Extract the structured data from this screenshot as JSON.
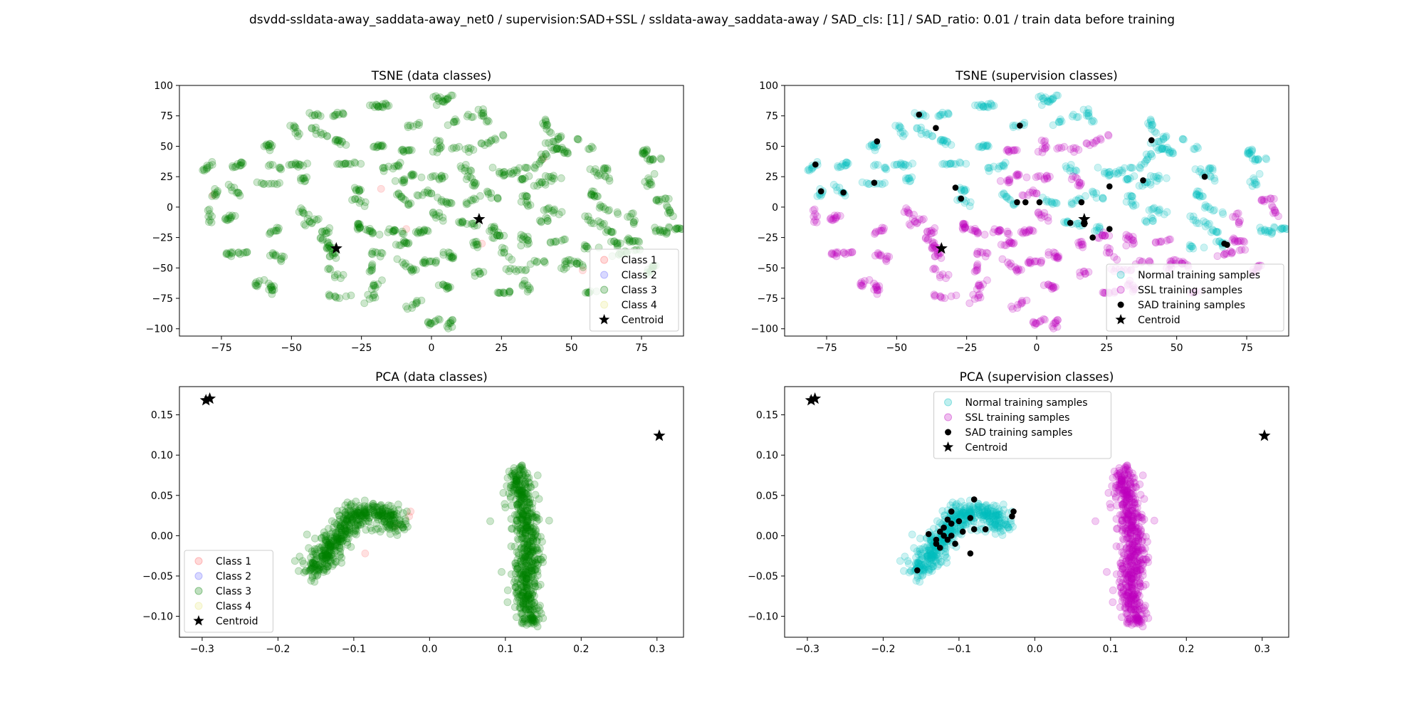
{
  "suptitle": "dsvdd-ssldata-away_saddata-away_net0 / supervision:SAD+SSL / ssldata-away_saddata-away / SAD_cls: [1] / SAD_ratio: 0.01 / train data before training",
  "colors": {
    "class1": "#ff6666",
    "class2": "#6666ff",
    "class3": "#008000",
    "class4": "#e6e680",
    "normal": "#00bfbf",
    "ssl": "#bf00bf",
    "sad": "#000000",
    "centroid": "#000000"
  },
  "chart_data": [
    {
      "type": "scatter",
      "title": "TSNE (data classes)",
      "xlim": [
        -90,
        90
      ],
      "ylim": [
        -106,
        100
      ],
      "xticks": [
        -75,
        -50,
        -25,
        0,
        25,
        50,
        75
      ],
      "yticks": [
        100,
        75,
        50,
        25,
        0,
        -25,
        -50,
        -75,
        -100
      ],
      "legend_position": "lower-right",
      "series": [
        {
          "name": "Class 1",
          "color": "class1",
          "points": [
            [
              -78,
              10
            ],
            [
              -18,
              15
            ],
            [
              -9,
              -18
            ],
            [
              18,
              -30
            ],
            [
              40,
              40
            ],
            [
              54,
              -52
            ]
          ]
        },
        {
          "name": "Class 2",
          "color": "class2",
          "points": []
        },
        {
          "name": "Class 3",
          "color": "class3",
          "points": "tsne_clusters"
        },
        {
          "name": "Class 4",
          "color": "class4",
          "points": []
        }
      ],
      "centroids": [
        [
          -34,
          -34
        ],
        [
          17,
          -10
        ]
      ]
    },
    {
      "type": "scatter",
      "title": "TSNE (supervision classes)",
      "xlim": [
        -90,
        90
      ],
      "ylim": [
        -106,
        100
      ],
      "xticks": [
        -75,
        -50,
        -25,
        0,
        25,
        50,
        75
      ],
      "yticks": [
        100,
        75,
        50,
        25,
        0,
        -25,
        -50,
        -75,
        -100
      ],
      "legend_position": "lower-right",
      "series": [
        {
          "name": "Normal training samples",
          "color": "normal",
          "points": "tsne_clusters_normal"
        },
        {
          "name": "SSL training samples",
          "color": "ssl",
          "points": "tsne_clusters_ssl"
        },
        {
          "name": "SAD training samples",
          "color": "sad",
          "points": [
            [
              -79,
              35
            ],
            [
              -77,
              13
            ],
            [
              -69,
              12
            ],
            [
              -57,
              54
            ],
            [
              -58,
              20
            ],
            [
              -42,
              76
            ],
            [
              -36,
              65
            ],
            [
              -29,
              16
            ],
            [
              -27,
              7
            ],
            [
              -6,
              67
            ],
            [
              -7,
              4
            ],
            [
              -4,
              4
            ],
            [
              1,
              4
            ],
            [
              16,
              4
            ],
            [
              12,
              -13
            ],
            [
              17,
              -14
            ],
            [
              20,
              -25
            ],
            [
              26,
              -18
            ],
            [
              26,
              17
            ],
            [
              38,
              22
            ],
            [
              41,
              55
            ],
            [
              60,
              25
            ],
            [
              67,
              -30
            ],
            [
              68,
              -31
            ]
          ]
        }
      ],
      "centroids": [
        [
          -34,
          -34
        ],
        [
          17,
          -10
        ]
      ]
    },
    {
      "type": "scatter",
      "title": "PCA (data classes)",
      "xlim": [
        -0.33,
        0.335
      ],
      "ylim": [
        -0.126,
        0.185
      ],
      "xticks": [
        -0.3,
        -0.2,
        -0.1,
        0.0,
        0.1,
        0.2,
        0.3
      ],
      "xticklabels": [
        "−0.3",
        "−0.2",
        "−0.1",
        "0.0",
        "0.1",
        "0.2",
        "0.3"
      ],
      "yticks": [
        0.15,
        0.1,
        0.05,
        0.0,
        -0.05,
        -0.1
      ],
      "yticklabels": [
        "0.15",
        "0.10",
        "0.05",
        "0.00",
        "−0.05",
        "−0.10"
      ],
      "legend_position": "lower-left",
      "series": [
        {
          "name": "Class 1",
          "color": "class1",
          "points": [
            [
              -0.025,
              0.03
            ],
            [
              -0.027,
              0.024
            ],
            [
              -0.085,
              -0.022
            ],
            [
              -0.045,
              0.012
            ]
          ]
        },
        {
          "name": "Class 2",
          "color": "class2",
          "points": []
        },
        {
          "name": "Class 3",
          "color": "class3",
          "points": "pca_clusters"
        },
        {
          "name": "Class 4",
          "color": "class4",
          "points": []
        }
      ],
      "centroids": [
        [
          -0.295,
          0.168
        ],
        [
          -0.29,
          0.17
        ],
        [
          0.303,
          0.124
        ]
      ]
    },
    {
      "type": "scatter",
      "title": "PCA (supervision classes)",
      "xlim": [
        -0.33,
        0.335
      ],
      "ylim": [
        -0.126,
        0.185
      ],
      "xticks": [
        -0.3,
        -0.2,
        -0.1,
        0.0,
        0.1,
        0.2,
        0.3
      ],
      "xticklabels": [
        "−0.3",
        "−0.2",
        "−0.1",
        "0.0",
        "0.1",
        "0.2",
        "0.3"
      ],
      "yticks": [
        0.15,
        0.1,
        0.05,
        0.0,
        -0.05,
        -0.1
      ],
      "yticklabels": [
        "0.15",
        "0.10",
        "0.05",
        "0.00",
        "−0.05",
        "−0.10"
      ],
      "legend_position": "upper-center",
      "series": [
        {
          "name": "Normal training samples",
          "color": "normal",
          "points": "pca_left_cluster"
        },
        {
          "name": "SSL training samples",
          "color": "ssl",
          "points": "pca_right_cluster"
        },
        {
          "name": "SAD training samples",
          "color": "sad",
          "points": [
            [
              -0.11,
              0.03
            ],
            [
              -0.115,
              0.02
            ],
            [
              -0.11,
              0.015
            ],
            [
              -0.12,
              0.0
            ],
            [
              -0.125,
              0.005
            ],
            [
              -0.13,
              -0.005
            ],
            [
              -0.125,
              -0.015
            ],
            [
              -0.13,
              -0.01
            ],
            [
              -0.115,
              -0.005
            ],
            [
              -0.1,
              0.018
            ],
            [
              -0.095,
              0.005
            ],
            [
              -0.085,
              0.022
            ],
            [
              -0.08,
              0.045
            ],
            [
              -0.08,
              0.008
            ],
            [
              -0.065,
              0.008
            ],
            [
              -0.028,
              0.03
            ],
            [
              -0.03,
              0.024
            ],
            [
              -0.085,
              -0.022
            ],
            [
              -0.155,
              -0.043
            ],
            [
              -0.11,
              0.0
            ],
            [
              -0.14,
              0.002
            ],
            [
              -0.105,
              -0.01
            ],
            [
              -0.12,
              0.01
            ]
          ]
        }
      ],
      "centroids": [
        [
          -0.295,
          0.168
        ],
        [
          -0.29,
          0.17
        ],
        [
          0.303,
          0.124
        ]
      ]
    }
  ]
}
